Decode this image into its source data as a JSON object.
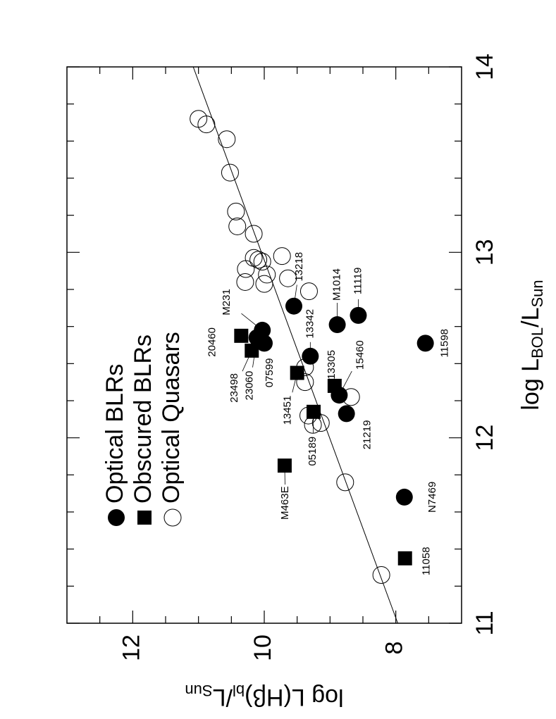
{
  "chart_data": {
    "type": "scatter",
    "x_label": [
      "log L",
      "BOL",
      "/L",
      "Sun"
    ],
    "y_label": [
      "log L(Hβ)",
      "bl",
      "/L",
      "Sun"
    ],
    "xlim": [
      11,
      14
    ],
    "ylim": [
      7,
      13
    ],
    "xticks": [
      11,
      12,
      13,
      14
    ],
    "yticks": [
      8,
      10,
      12
    ],
    "xminorticks": [
      11.2,
      11.4,
      11.6,
      11.8,
      12.2,
      12.4,
      12.6,
      12.8,
      13.2,
      13.4,
      13.6,
      13.8
    ],
    "yminorticks": [
      7.5,
      8.5,
      9,
      9.5,
      10.5,
      11,
      11.5,
      12.5
    ],
    "legend": "top-left",
    "fit_line": {
      "x": [
        11,
        14
      ],
      "y": [
        7.97,
        11.08
      ]
    },
    "series": [
      {
        "name": "Optical BLRs",
        "marker": "filled-circle",
        "color": "#000000",
        "x": [
          11.68,
          12.51,
          12.13,
          12.23,
          12.44,
          12.61,
          12.66,
          12.71,
          12.58,
          12.54,
          12.51
        ],
        "values": [
          7.87,
          7.55,
          8.75,
          8.86,
          9.3,
          8.89,
          8.57,
          9.55,
          10.03,
          10.11,
          10.0
        ],
        "labels": [
          "N7469",
          "11598",
          "21219",
          "15460",
          "13342",
          "M1014",
          "11119",
          "13218",
          "M231",
          "23060",
          "07599"
        ]
      },
      {
        "name": "Obscured BLRs",
        "marker": "square",
        "color": "#000000",
        "x": [
          11.35,
          11.85,
          12.14,
          12.35,
          12.28,
          12.47,
          12.55
        ],
        "values": [
          7.86,
          9.69,
          9.25,
          9.5,
          8.93,
          10.19,
          10.35
        ],
        "labels": [
          "11058",
          "M463E",
          "05189",
          "13451",
          "13305",
          "23498",
          "20460"
        ]
      },
      {
        "name": "Optical Quasars",
        "marker": "open-circle",
        "color": "#000000",
        "x": [
          11.26,
          11.76,
          12.08,
          12.07,
          12.12,
          12.22,
          12.3,
          12.38,
          12.79,
          12.86,
          12.83,
          12.88,
          12.84,
          12.91,
          12.95,
          12.96,
          12.97,
          12.98,
          13.1,
          13.14,
          13.22,
          13.43,
          13.61,
          13.69,
          13.72
        ],
        "values": [
          8.22,
          8.77,
          9.14,
          9.26,
          9.33,
          8.68,
          9.38,
          9.38,
          9.32,
          9.64,
          10.0,
          9.96,
          10.29,
          10.28,
          10.03,
          10.09,
          10.16,
          9.73,
          10.16,
          10.41,
          10.43,
          10.52,
          10.57,
          10.88,
          11.0
        ]
      }
    ]
  }
}
